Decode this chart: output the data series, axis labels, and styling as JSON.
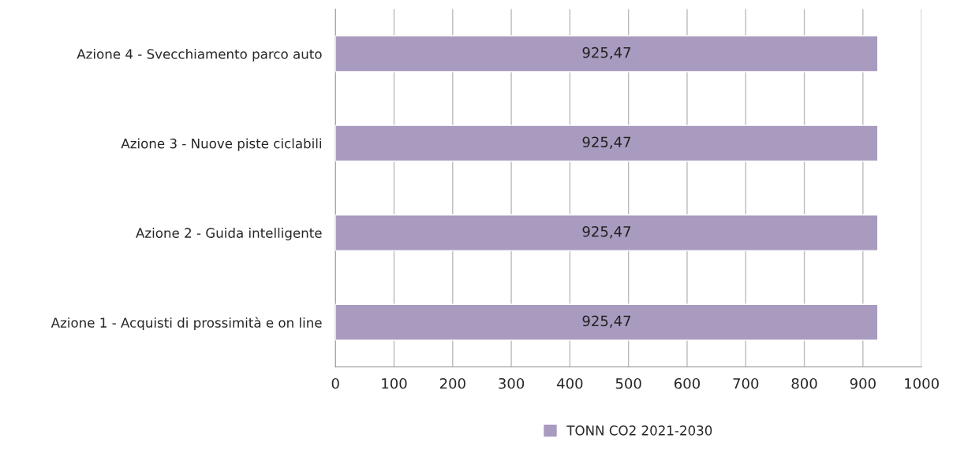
{
  "chart_data": {
    "type": "bar",
    "orientation": "horizontal",
    "categories": [
      "Azione 4 - Svecchiamento parco auto",
      "Azione 3 - Nuove piste ciclabili",
      "Azione 2 - Guida intelligente",
      "Azione 1 - Acquisti di prossimità e on line"
    ],
    "series": [
      {
        "name": "TONN CO2 2021-2030",
        "color": "#a99bbf",
        "values": [
          925.47,
          925.47,
          925.47,
          925.47
        ],
        "value_labels": [
          "925,47",
          "925,47",
          "925,47",
          "925,47"
        ]
      }
    ],
    "xlim": [
      0,
      1000
    ],
    "xticks": [
      0,
      100,
      200,
      300,
      400,
      500,
      600,
      700,
      800,
      900,
      1000
    ],
    "grid": "x",
    "legend": "bottom"
  }
}
